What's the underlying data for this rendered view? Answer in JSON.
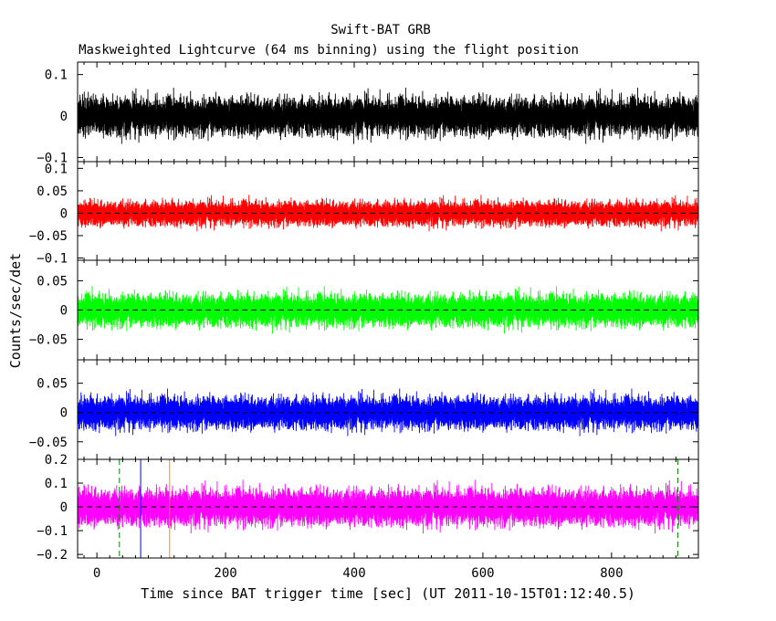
{
  "chart_data": {
    "type": "line",
    "title": "Swift-BAT GRB",
    "subtitle": "Maskweighted Lightcurve (64 ms binning) using the flight position",
    "xlabel": "Time since BAT trigger time [sec] (UT 2011-10-15T01:12:40.5)",
    "ylabel": "Counts/sec/det",
    "xlim": [
      -30,
      935
    ],
    "xticks": [
      0,
      200,
      400,
      600,
      800
    ],
    "xtick_labels": [
      "0",
      "200",
      "400",
      "600",
      "800"
    ],
    "panels": [
      {
        "color": "#000000",
        "ylim": [
          -0.11,
          0.13
        ],
        "yticks": [
          0.1,
          0,
          -0.1
        ],
        "ytick_labels": [
          "0.1",
          "0",
          "−0.1"
        ],
        "zero_line": false,
        "noise_sigma": 0.03,
        "noise_limit": 0.115
      },
      {
        "color": "#ff0000",
        "ylim": [
          -0.105,
          0.115
        ],
        "yticks": [
          0.1,
          0.05,
          0,
          -0.05,
          -0.1
        ],
        "ytick_labels": [
          "0.1",
          "0.05",
          "0",
          "−0.05",
          "−0.1"
        ],
        "zero_line": true,
        "noise_sigma": 0.018,
        "noise_limit": 0.1
      },
      {
        "color": "#00ff00",
        "ylim": [
          -0.085,
          0.085
        ],
        "yticks": [
          0.05,
          0,
          -0.05
        ],
        "ytick_labels": [
          "0.05",
          "0",
          "−0.05"
        ],
        "zero_line": true,
        "noise_sigma": 0.018,
        "noise_limit": 0.085
      },
      {
        "color": "#0000ff",
        "ylim": [
          -0.08,
          0.09
        ],
        "yticks": [
          0.05,
          0,
          -0.05
        ],
        "ytick_labels": [
          "0.05",
          "0",
          "−0.05"
        ],
        "zero_line": true,
        "noise_sigma": 0.018,
        "noise_limit": 0.08
      },
      {
        "color": "#ff00ff",
        "ylim": [
          -0.215,
          0.2
        ],
        "yticks": [
          0.2,
          0.1,
          0,
          -0.1,
          -0.2
        ],
        "ytick_labels": [
          "0.2",
          "0.1",
          "0",
          "−0.1",
          "−0.2"
        ],
        "zero_line": true,
        "noise_sigma": 0.05,
        "noise_limit": 0.2
      }
    ],
    "marker_lines": [
      {
        "x": 35,
        "color": "#008800",
        "style": "dashed"
      },
      {
        "x": 68,
        "color": "#0000ff",
        "style": "solid"
      },
      {
        "x": 113,
        "color": "#ff8800",
        "style": "solid"
      },
      {
        "x": 903,
        "color": "#008800",
        "style": "dashed"
      }
    ],
    "n_bins": 14000
  }
}
